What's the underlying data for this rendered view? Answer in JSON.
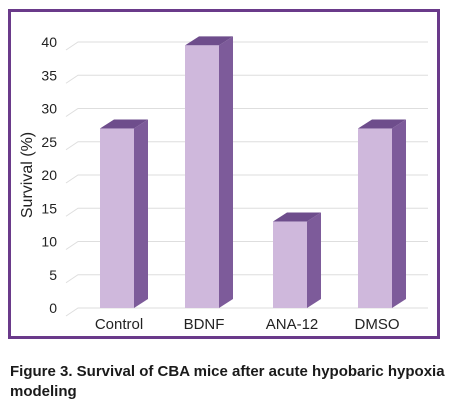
{
  "chart_data": {
    "type": "bar",
    "categories": [
      "Control",
      "BDNF",
      "ANA-12",
      "DMSO"
    ],
    "values": [
      27,
      39.5,
      13,
      27
    ],
    "title": "",
    "xlabel": "",
    "ylabel": "Survival (%)",
    "ylim": [
      0,
      40
    ],
    "yticks": [
      0,
      5,
      10,
      15,
      20,
      25,
      30,
      35,
      40
    ],
    "grid": true,
    "legend": "none",
    "colors": {
      "bar_front": "#cfb8dc",
      "bar_side": "#7d5b9a",
      "bar_top": "#6e4d8c",
      "grid": "#dedede",
      "frame": "#6a3a8a"
    }
  },
  "caption": "Figure 3. Survival of CBA mice after acute hypobaric hypoxia modeling"
}
